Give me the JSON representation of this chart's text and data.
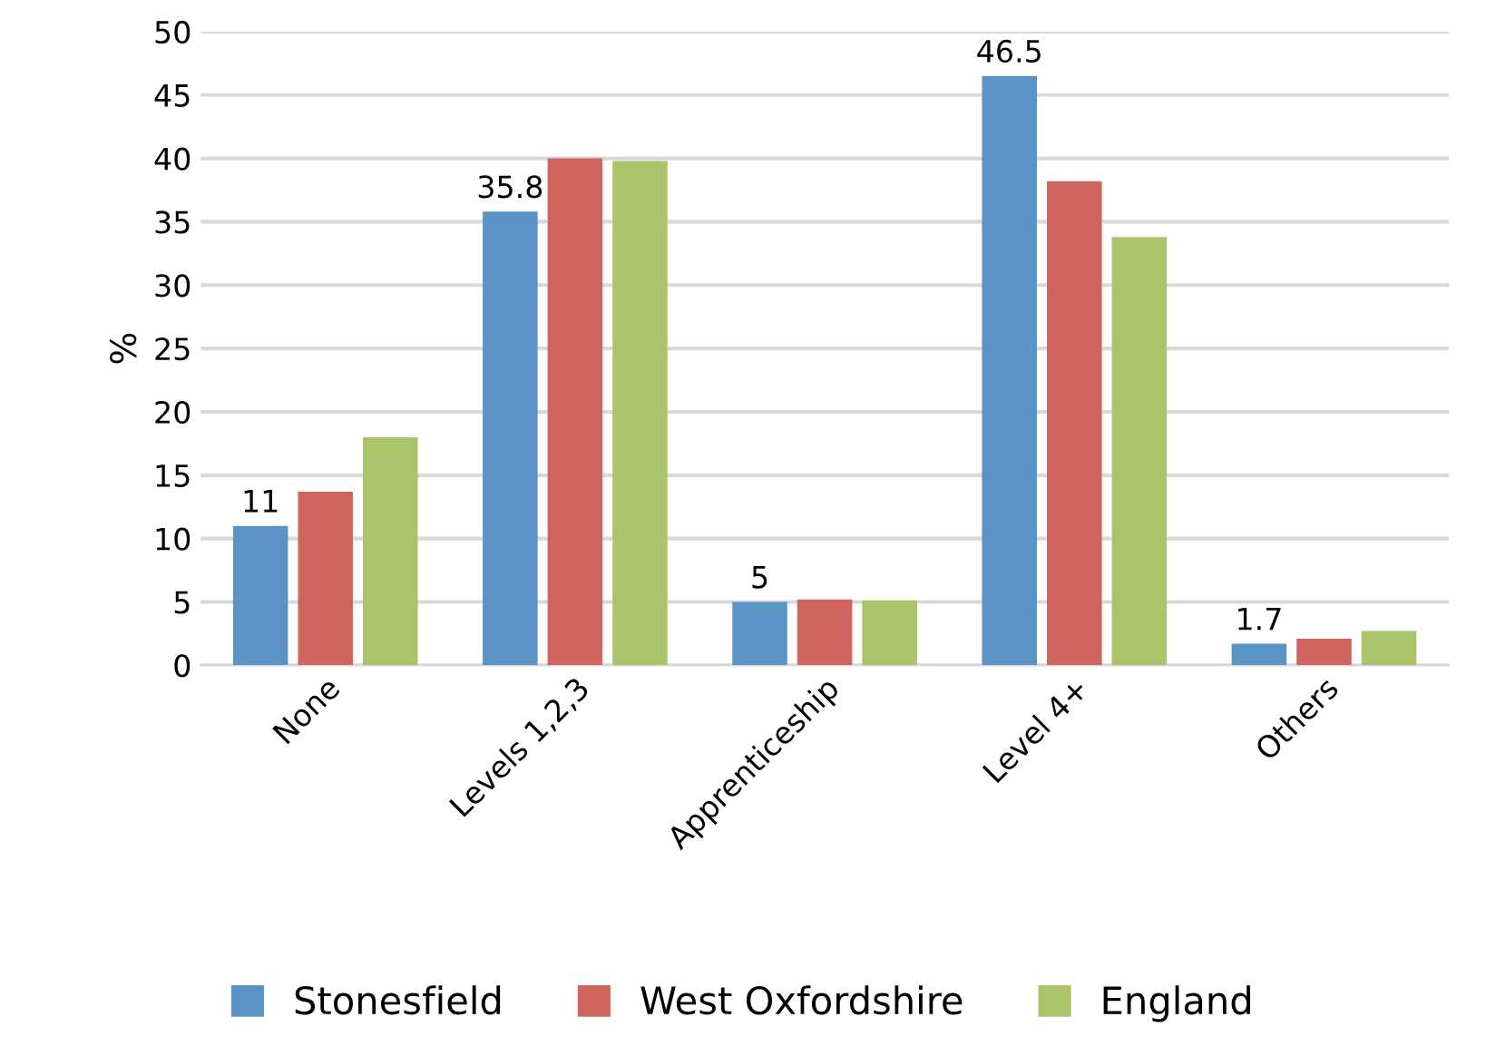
{
  "chart_data": {
    "type": "bar",
    "ylabel": "%",
    "categories": [
      "None",
      "Levels 1,2,3",
      "Apprenticeship",
      "Level 4+",
      "Others"
    ],
    "series": [
      {
        "name": "Stonesfield",
        "color": "#5b93c7",
        "values": [
          11,
          35.8,
          5,
          46.5,
          1.7
        ],
        "value_labels": [
          "11",
          "35.8",
          "5",
          "46.5",
          "1.7"
        ]
      },
      {
        "name": "West Oxfordshire",
        "color": "#d0645f",
        "values": [
          13.7,
          40.0,
          5.2,
          38.2,
          2.1
        ]
      },
      {
        "name": "England",
        "color": "#a9c46a",
        "values": [
          18.0,
          39.8,
          5.1,
          33.8,
          2.7
        ]
      }
    ],
    "ylim": [
      0,
      50
    ],
    "yticks": [
      0,
      5,
      10,
      15,
      20,
      25,
      30,
      35,
      40,
      45,
      50
    ],
    "grid": "y",
    "legend": "bottom"
  }
}
